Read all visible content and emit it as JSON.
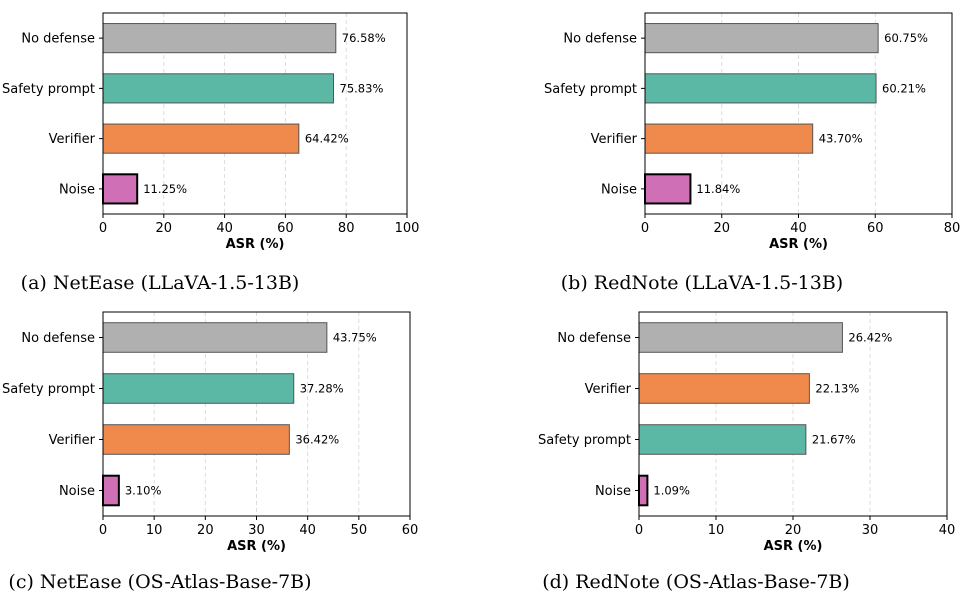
{
  "colors": {
    "No defense": "#b0b0b0",
    "Safety prompt": "#5ab8a4",
    "Verifier": "#ef8a4c",
    "Noise": "#cf6fb5"
  },
  "chart_data": [
    {
      "type": "bar",
      "orientation": "horizontal",
      "caption": "(a) NetEase (LLaVA-1.5-13B)",
      "xlabel": "ASR (%)",
      "xlim": [
        0,
        100
      ],
      "xticks": [
        0,
        20,
        40,
        60,
        80,
        100
      ],
      "grid": "x, dashed",
      "categories": [
        "No defense",
        "Safety prompt",
        "Verifier",
        "Noise"
      ],
      "values": [
        76.58,
        75.83,
        64.42,
        11.25
      ],
      "value_labels": [
        "76.58%",
        "75.83%",
        "64.42%",
        "11.25%"
      ]
    },
    {
      "type": "bar",
      "orientation": "horizontal",
      "caption": "(b) RedNote (LLaVA-1.5-13B)",
      "xlabel": "ASR (%)",
      "xlim": [
        0,
        80
      ],
      "xticks": [
        0,
        20,
        40,
        60,
        80
      ],
      "grid": "x, dashed",
      "categories": [
        "No defense",
        "Safety prompt",
        "Verifier",
        "Noise"
      ],
      "values": [
        60.75,
        60.21,
        43.7,
        11.84
      ],
      "value_labels": [
        "60.75%",
        "60.21%",
        "43.70%",
        "11.84%"
      ]
    },
    {
      "type": "bar",
      "orientation": "horizontal",
      "caption": "(c) NetEase (OS-Atlas-Base-7B)",
      "xlabel": "ASR (%)",
      "xlim": [
        0,
        60
      ],
      "xticks": [
        0,
        10,
        20,
        30,
        40,
        50,
        60
      ],
      "grid": "x, dashed",
      "categories": [
        "No defense",
        "Safety prompt",
        "Verifier",
        "Noise"
      ],
      "values": [
        43.75,
        37.28,
        36.42,
        3.1
      ],
      "value_labels": [
        "43.75%",
        "37.28%",
        "36.42%",
        "3.10%"
      ]
    },
    {
      "type": "bar",
      "orientation": "horizontal",
      "caption": "(d) RedNote (OS-Atlas-Base-7B)",
      "xlabel": "ASR (%)",
      "xlim": [
        0,
        40
      ],
      "xticks": [
        0,
        10,
        20,
        30,
        40
      ],
      "grid": "x, dashed",
      "categories": [
        "No defense",
        "Verifier",
        "Safety prompt",
        "Noise"
      ],
      "values": [
        26.42,
        22.13,
        21.67,
        1.09
      ],
      "value_labels": [
        "26.42%",
        "22.13%",
        "21.67%",
        "1.09%"
      ]
    }
  ]
}
